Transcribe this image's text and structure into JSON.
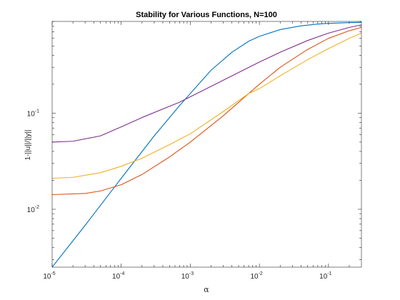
{
  "chart_data": {
    "type": "line",
    "title": "Stability for Various Functions, N=100",
    "xlabel": "α",
    "ylabel": "1-||u||/||y||",
    "xscale": "log",
    "yscale": "log",
    "xlim": [
      1e-05,
      0.3
    ],
    "ylim": [
      0.0025,
      0.9
    ],
    "x_ticks": [
      {
        "base": "10",
        "exp": "-5",
        "value": 1e-05
      },
      {
        "base": "10",
        "exp": "-4",
        "value": 0.0001
      },
      {
        "base": "10",
        "exp": "-3",
        "value": 0.001
      },
      {
        "base": "10",
        "exp": "-2",
        "value": 0.01
      },
      {
        "base": "10",
        "exp": "-1",
        "value": 0.1
      }
    ],
    "y_ticks": [
      {
        "base": "10",
        "exp": "-2",
        "value": 0.01
      },
      {
        "base": "10",
        "exp": "-1",
        "value": 0.1
      }
    ],
    "grid": false,
    "legend": false,
    "series": [
      {
        "color": "#0072BD",
        "x": [
          1e-05,
          3e-05,
          0.0001,
          0.0003,
          0.0007,
          0.001,
          0.002,
          0.004,
          0.007,
          0.01,
          0.02,
          0.04,
          0.07,
          0.1,
          0.2,
          0.3
        ],
        "y": [
          0.0025,
          0.0068,
          0.021,
          0.058,
          0.12,
          0.16,
          0.28,
          0.43,
          0.56,
          0.63,
          0.74,
          0.81,
          0.845,
          0.86,
          0.875,
          0.88
        ]
      },
      {
        "color": "#D95319",
        "x": [
          1e-05,
          3e-05,
          5e-05,
          0.0001,
          0.0002,
          0.0005,
          0.001,
          0.003,
          0.007,
          0.01,
          0.02,
          0.05,
          0.1,
          0.2,
          0.3
        ],
        "y": [
          0.0142,
          0.0146,
          0.0155,
          0.018,
          0.023,
          0.035,
          0.05,
          0.094,
          0.16,
          0.2,
          0.3,
          0.46,
          0.6,
          0.72,
          0.78
        ]
      },
      {
        "color": "#EDB120",
        "x": [
          1e-05,
          2e-05,
          5e-05,
          0.0001,
          0.0002,
          0.0005,
          0.001,
          0.003,
          0.007,
          0.01,
          0.02,
          0.05,
          0.1,
          0.2,
          0.3
        ],
        "y": [
          0.021,
          0.0215,
          0.024,
          0.028,
          0.034,
          0.047,
          0.061,
          0.104,
          0.16,
          0.18,
          0.245,
          0.36,
          0.47,
          0.6,
          0.68
        ]
      },
      {
        "color": "#7E2F8E",
        "x": [
          1e-05,
          2e-05,
          5e-05,
          0.0001,
          0.0002,
          0.0005,
          0.0007,
          0.001,
          0.002,
          0.005,
          0.01,
          0.02,
          0.05,
          0.1,
          0.2,
          0.3
        ],
        "y": [
          0.05,
          0.051,
          0.058,
          0.072,
          0.09,
          0.118,
          0.13,
          0.148,
          0.19,
          0.265,
          0.34,
          0.43,
          0.57,
          0.68,
          0.78,
          0.83
        ]
      }
    ]
  }
}
